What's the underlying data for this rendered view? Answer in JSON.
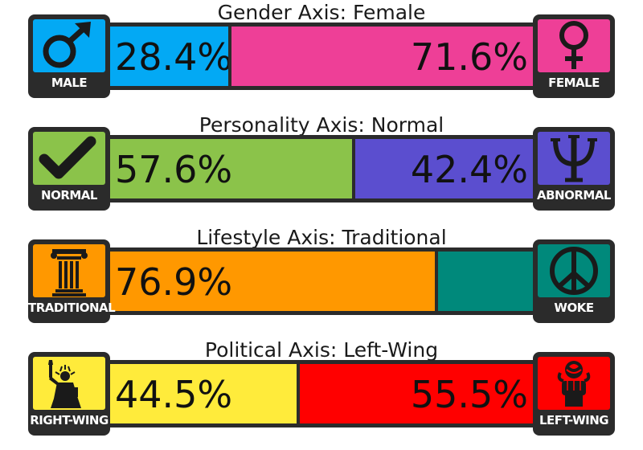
{
  "colors": {
    "frame": "#2b2b2b",
    "male": "#03a9f4",
    "female": "#ee3f97",
    "normal": "#8bc34a",
    "abnormal": "#5b4ecf",
    "traditional": "#ff9800",
    "woke": "#00897b",
    "right_wing": "#ffeb3b",
    "left_wing": "#ff0000"
  },
  "chart_data": [
    {
      "type": "bar",
      "title": "Gender Axis: Female",
      "left": {
        "name": "MALE",
        "value": 28.4,
        "label": "28.4%",
        "color": "#03a9f4",
        "icon": "male-symbol-icon"
      },
      "right": {
        "name": "FEMALE",
        "value": 71.6,
        "label": "71.6%",
        "color": "#ee3f97",
        "icon": "female-symbol-icon"
      }
    },
    {
      "type": "bar",
      "title": "Personality Axis: Normal",
      "left": {
        "name": "NORMAL",
        "value": 57.6,
        "label": "57.6%",
        "color": "#8bc34a",
        "icon": "checkmark-icon"
      },
      "right": {
        "name": "ABNORMAL",
        "value": 42.4,
        "label": "42.4%",
        "color": "#5b4ecf",
        "icon": "psi-symbol-icon"
      }
    },
    {
      "type": "bar",
      "title": "Lifestyle Axis: Traditional",
      "left": {
        "name": "TRADITIONAL",
        "value": 76.9,
        "label": "76.9%",
        "color": "#ff9800",
        "icon": "ionic-column-icon"
      },
      "right": {
        "name": "WOKE",
        "value": 23.1,
        "label": "",
        "color": "#00897b",
        "icon": "peace-sign-icon"
      }
    },
    {
      "type": "bar",
      "title": "Political Axis: Left-Wing",
      "left": {
        "name": "RIGHT-WING",
        "value": 44.5,
        "label": "44.5%",
        "color": "#ffeb3b",
        "icon": "statue-of-liberty-icon"
      },
      "right": {
        "name": "LEFT-WING",
        "value": 55.5,
        "label": "55.5%",
        "color": "#ff0000",
        "icon": "fist-and-rose-icon"
      }
    }
  ]
}
